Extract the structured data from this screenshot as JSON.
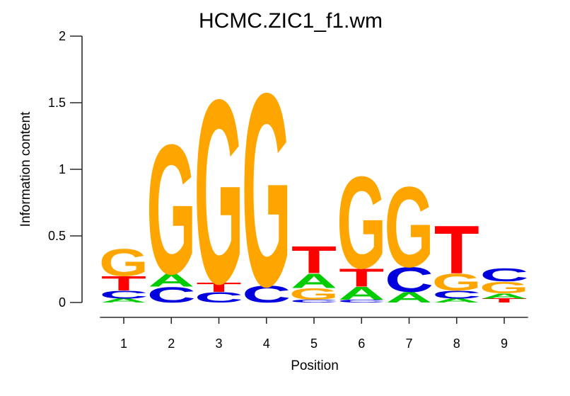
{
  "figure": {
    "title": "HCMC.ZIC1_f1.wm",
    "x_axis": {
      "label": "Position",
      "tick_labels": [
        "1",
        "2",
        "3",
        "4",
        "5",
        "6",
        "7",
        "8",
        "9"
      ]
    },
    "y_axis": {
      "label": "Information content",
      "tick_labels": [
        "0",
        "0.5",
        "1",
        "1.5",
        "2"
      ],
      "tick_values": [
        0,
        0.5,
        1,
        1.5,
        2
      ],
      "range": [
        0,
        2
      ]
    }
  },
  "chart_data": {
    "type": "bar",
    "variant": "sequence_logo_stacked_letters",
    "title": "HCMC.ZIC1_f1.wm",
    "xlabel": "Position",
    "ylabel": "Information content",
    "ylim": [
      0,
      2
    ],
    "yticks": [
      0,
      0.5,
      1,
      1.5,
      2
    ],
    "categories": [
      "1",
      "2",
      "3",
      "4",
      "5",
      "6",
      "7",
      "8",
      "9"
    ],
    "grid": false,
    "legend": "none",
    "base_colors": {
      "A": "#00CC00",
      "C": "#0000DD",
      "G": "#FFA500",
      "T": "#FF0000"
    },
    "positions": [
      {
        "position": 1,
        "total_ic": 0.41,
        "stack_bottom_to_top": [
          {
            "base": "A",
            "ic": 0.03
          },
          {
            "base": "C",
            "ic": 0.06
          },
          {
            "base": "T",
            "ic": 0.11
          },
          {
            "base": "G",
            "ic": 0.21
          }
        ]
      },
      {
        "position": 2,
        "total_ic": 1.22,
        "stack_bottom_to_top": [
          {
            "base": "C",
            "ic": 0.12
          },
          {
            "base": "A",
            "ic": 0.1
          },
          {
            "base": "G",
            "ic": 1.0
          }
        ]
      },
      {
        "position": 3,
        "total_ic": 1.57,
        "stack_bottom_to_top": [
          {
            "base": "C",
            "ic": 0.08
          },
          {
            "base": "T",
            "ic": 0.07
          },
          {
            "base": "G",
            "ic": 1.42
          }
        ]
      },
      {
        "position": 4,
        "total_ic": 1.62,
        "stack_bottom_to_top": [
          {
            "base": "C",
            "ic": 0.13
          },
          {
            "base": "G",
            "ic": 1.49
          }
        ]
      },
      {
        "position": 5,
        "total_ic": 0.43,
        "stack_bottom_to_top": [
          {
            "base": "C",
            "ic": 0.02
          },
          {
            "base": "G",
            "ic": 0.09
          },
          {
            "base": "A",
            "ic": 0.11
          },
          {
            "base": "T",
            "ic": 0.21
          }
        ]
      },
      {
        "position": 6,
        "total_ic": 0.97,
        "stack_bottom_to_top": [
          {
            "base": "C",
            "ic": 0.02
          },
          {
            "base": "A",
            "ic": 0.1
          },
          {
            "base": "T",
            "ic": 0.14
          },
          {
            "base": "G",
            "ic": 0.71
          }
        ]
      },
      {
        "position": 7,
        "total_ic": 0.89,
        "stack_bottom_to_top": [
          {
            "base": "A",
            "ic": 0.08
          },
          {
            "base": "C",
            "ic": 0.19
          },
          {
            "base": "G",
            "ic": 0.62
          }
        ]
      },
      {
        "position": 8,
        "total_ic": 0.59,
        "stack_bottom_to_top": [
          {
            "base": "A",
            "ic": 0.03
          },
          {
            "base": "C",
            "ic": 0.06
          },
          {
            "base": "G",
            "ic": 0.13
          },
          {
            "base": "T",
            "ic": 0.37
          }
        ]
      },
      {
        "position": 9,
        "total_ic": 0.26,
        "stack_bottom_to_top": [
          {
            "base": "T",
            "ic": 0.03
          },
          {
            "base": "A",
            "ic": 0.04
          },
          {
            "base": "G",
            "ic": 0.09
          },
          {
            "base": "C",
            "ic": 0.1
          }
        ]
      }
    ]
  }
}
